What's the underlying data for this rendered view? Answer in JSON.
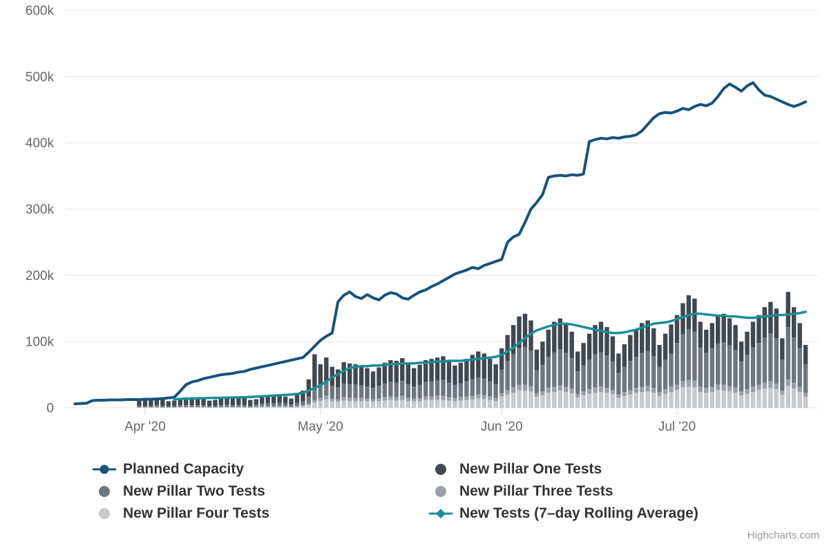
{
  "credit": {
    "text": "Highcharts.com"
  },
  "legend": {
    "items": [
      {
        "label": "Planned Capacity",
        "marker": "line-dot",
        "color": "#17527b"
      },
      {
        "label": "New Pillar One Tests",
        "marker": "circle",
        "color": "#41484f"
      },
      {
        "label": "New Pillar Two Tests",
        "marker": "circle",
        "color": "#6f767d"
      },
      {
        "label": "New Pillar Three Tests",
        "marker": "circle",
        "color": "#9aa0a6"
      },
      {
        "label": "New Pillar Four Tests",
        "marker": "circle",
        "color": "#c6cace"
      },
      {
        "label": "New Tests (7–day Rolling Average)",
        "marker": "line-diamond",
        "color": "#1a8e99"
      }
    ]
  },
  "chart_data": {
    "type": "combo",
    "values_unit": "thousands",
    "grid": "horizontal",
    "colors": {
      "gridline": "#e6e6e6",
      "tick": "#ccd6eb",
      "axis_label": "#666666"
    },
    "y_axis": {
      "tick_labels": [
        "0",
        "100k",
        "200k",
        "300k",
        "400k",
        "500k",
        "600k"
      ],
      "tick_values": [
        0,
        100,
        200,
        300,
        400,
        500,
        600
      ],
      "max": 600
    },
    "x_axis": {
      "tick_labels": [
        "Apr '20",
        "May '20",
        "Jun '20",
        "Jul '20"
      ],
      "tick_day_indices": [
        12,
        42,
        73,
        103
      ]
    },
    "series": [
      {
        "name": "Planned Capacity",
        "type": "line",
        "color": "#17527b",
        "line_width": 4,
        "start_index": 0,
        "values": [
          6,
          6.5,
          7,
          11,
          11.5,
          11.5,
          12,
          12,
          12,
          12.5,
          12.5,
          12.5,
          13,
          13,
          13.5,
          14,
          15,
          16,
          25,
          35,
          39,
          41,
          44,
          46,
          48,
          50,
          51,
          52,
          54,
          55,
          58,
          60,
          62,
          64,
          66,
          68,
          70,
          72,
          74,
          76,
          84,
          93,
          102,
          108,
          113,
          160,
          170,
          175,
          168,
          165,
          171,
          166,
          163,
          170,
          174,
          172,
          166,
          164,
          170,
          175,
          178,
          183,
          187,
          192,
          197,
          202,
          205,
          208,
          212,
          210,
          215,
          218,
          221,
          224,
          250,
          258,
          262,
          280,
          300,
          310,
          322,
          348,
          350,
          351,
          350,
          352,
          351,
          353,
          402,
          405,
          407,
          406,
          408,
          407,
          409,
          410,
          412,
          418,
          428,
          438,
          444,
          446,
          445,
          448,
          452,
          450,
          455,
          458,
          456,
          460,
          470,
          482,
          489,
          484,
          478,
          486,
          491,
          480,
          472,
          470,
          466,
          462,
          458,
          455,
          458,
          462
        ]
      },
      {
        "name": "New Pillar One Tests",
        "type": "column",
        "color": "#41484f",
        "start_index": 11,
        "values": [
          8,
          9,
          10,
          10,
          9,
          7.5,
          8,
          10,
          11,
          12,
          11,
          10,
          8,
          9,
          12,
          12.5,
          12,
          12.5,
          11,
          9,
          8,
          10.5,
          11,
          12,
          12.5,
          10.5,
          9,
          12.5,
          16,
          26,
          49,
          30,
          35,
          29,
          27,
          32,
          31,
          30,
          29,
          28,
          25,
          28,
          31,
          33,
          33,
          34,
          31,
          28,
          30,
          33,
          34,
          35,
          36,
          32,
          29,
          31,
          34,
          37,
          39,
          38,
          34,
          30,
          32,
          39,
          44,
          48,
          50,
          46,
          31,
          35,
          41,
          46,
          47,
          45,
          40,
          30,
          34,
          39,
          44,
          46,
          43,
          38,
          29,
          34,
          39,
          41,
          45,
          46,
          42,
          33,
          39,
          44,
          42,
          47,
          51,
          50,
          39,
          35,
          38,
          41,
          43,
          41,
          38,
          30,
          35,
          39,
          42,
          46,
          48,
          45,
          32,
          53,
          46,
          38,
          29
        ]
      },
      {
        "name": "New Pillar Two Tests",
        "type": "column",
        "color": "#6f767d",
        "start_index": 11,
        "values": [
          2,
          2,
          2,
          2.5,
          2,
          1.5,
          2,
          2.5,
          2.5,
          2.5,
          2.5,
          2.5,
          2,
          2,
          2.5,
          3,
          2.5,
          3,
          2.5,
          2,
          3,
          4,
          4.5,
          4.5,
          5,
          4,
          3.5,
          5,
          6,
          10.5,
          20,
          21,
          23,
          19,
          18,
          21,
          21,
          21,
          19,
          18,
          17,
          19,
          21,
          22,
          22,
          23,
          21,
          18,
          20,
          22,
          23,
          23,
          24,
          22,
          20,
          21,
          23,
          25,
          26,
          25,
          23,
          21,
          36,
          44,
          50,
          55,
          57,
          53,
          35,
          40,
          47,
          52,
          54,
          51,
          46,
          34,
          39,
          45,
          50,
          52,
          49,
          43,
          33,
          38,
          44,
          47,
          51,
          53,
          48,
          38,
          45,
          50,
          63,
          71,
          77,
          74,
          59,
          53,
          58,
          62,
          64,
          61,
          56,
          45,
          52,
          59,
          63,
          68,
          72,
          68,
          47,
          79,
          68,
          58,
          43
        ]
      },
      {
        "name": "New Pillar Three Tests",
        "type": "column",
        "color": "#9aa0a6",
        "start_index": 11,
        "values": [
          0.5,
          0.5,
          0.5,
          0.5,
          0.5,
          0.5,
          0.5,
          0.5,
          0.5,
          0.5,
          0.5,
          0.5,
          0.5,
          0.5,
          0.5,
          0.5,
          0.5,
          0.5,
          0.5,
          0.5,
          1,
          1,
          1,
          1,
          1,
          1,
          0.5,
          1,
          1.5,
          2,
          4,
          5,
          5,
          4,
          4,
          5,
          5,
          5,
          5,
          4,
          4,
          4,
          5,
          5,
          5,
          6,
          5,
          4,
          5,
          5,
          5,
          6,
          6,
          5,
          5,
          5,
          5,
          5,
          6,
          6,
          5,
          5,
          5,
          7,
          8,
          8,
          9,
          8,
          5,
          6,
          7,
          8,
          8,
          8,
          7,
          5,
          6,
          7,
          8,
          8,
          7,
          6,
          5,
          6,
          7,
          7,
          8,
          8,
          7,
          6,
          7,
          8,
          8,
          9,
          10,
          10,
          8,
          7,
          8,
          8,
          9,
          8,
          8,
          6,
          7,
          8,
          8,
          9,
          10,
          9,
          6,
          10,
          9,
          8,
          6
        ]
      },
      {
        "name": "New Pillar Four Tests",
        "type": "column",
        "color": "#c6cace",
        "start_index": 11,
        "values": [
          0.5,
          0.5,
          0.5,
          1,
          0.5,
          0.5,
          0.5,
          1,
          1,
          1,
          1,
          1,
          0.5,
          0.5,
          1,
          1,
          1,
          1,
          1,
          0.5,
          1,
          1.5,
          1.5,
          1.5,
          1.5,
          1.5,
          1,
          1.5,
          2.5,
          4.5,
          8,
          10,
          13,
          10,
          9,
          11,
          10,
          10,
          10,
          10,
          9,
          10,
          11,
          12,
          11,
          12,
          10,
          10,
          10,
          12,
          12,
          12,
          12,
          11,
          10,
          11,
          12,
          13,
          14,
          13,
          12,
          10,
          17,
          20,
          23,
          27,
          26,
          25,
          17,
          19,
          23,
          24,
          26,
          24,
          22,
          16,
          19,
          21,
          23,
          24,
          23,
          21,
          15,
          18,
          20,
          23,
          24,
          25,
          23,
          18,
          21,
          24,
          27,
          31,
          32,
          31,
          24,
          23,
          24,
          27,
          26,
          25,
          23,
          19,
          21,
          24,
          27,
          29,
          30,
          28,
          20,
          33,
          29,
          24,
          17
        ]
      },
      {
        "name": "New Tests (7–day Rolling Average)",
        "type": "line",
        "color": "#1a8e99",
        "line_width": 3.5,
        "start_index": 17,
        "values": [
          13,
          13.5,
          14,
          14,
          14.5,
          14.5,
          15,
          15,
          15,
          15.5,
          15.5,
          16,
          16,
          16.5,
          17,
          17.5,
          18,
          18.5,
          19,
          19.5,
          20,
          21,
          23,
          26,
          30,
          34,
          40,
          46,
          51,
          56,
          60,
          62,
          63,
          63,
          64,
          64,
          65,
          66,
          66,
          67,
          67,
          67,
          68,
          68,
          69,
          70,
          70,
          71,
          71,
          71,
          72,
          73,
          74,
          75,
          76,
          77,
          80,
          85,
          91,
          98,
          105,
          112,
          117,
          120,
          123,
          125,
          127,
          127,
          126,
          124,
          122,
          120,
          118,
          116,
          114,
          113,
          113,
          114,
          116,
          118,
          121,
          124,
          127,
          128,
          129,
          131,
          134,
          137,
          140,
          142,
          142,
          141,
          140,
          139,
          139,
          138,
          138,
          137,
          136,
          136,
          137,
          138,
          139,
          140,
          140,
          141,
          142,
          143,
          145
        ]
      }
    ]
  }
}
